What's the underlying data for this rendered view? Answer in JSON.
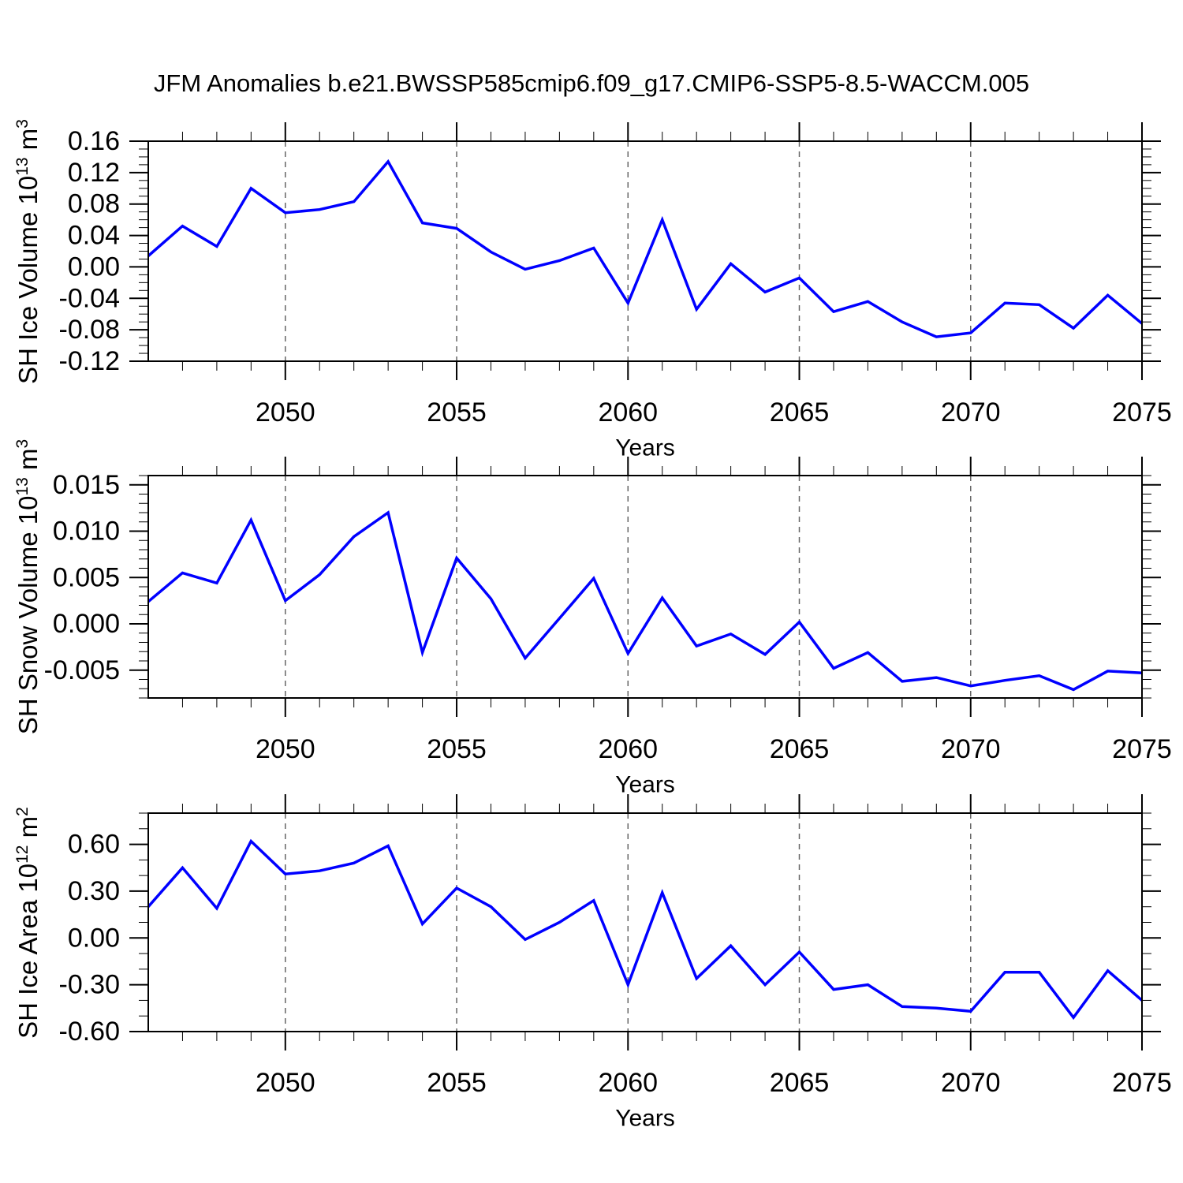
{
  "title": "JFM Anomalies b.e21.BWSSP585cmip6.f09_g17.CMIP6-SSP5-8.5-WACCM.005",
  "colors": {
    "line": "#0000ff",
    "frame": "#000000",
    "gridline": "#666666",
    "text": "#000000"
  },
  "x_axis": {
    "label": "Years",
    "xlim": [
      2046,
      2075
    ],
    "major_tick_start": 2050,
    "major_tick_step": 5,
    "minor_tick_step": 1,
    "gridline_years": [
      2050,
      2055,
      2060,
      2065,
      2070
    ],
    "tick_labels": [
      "2050",
      "2055",
      "2060",
      "2065",
      "2070",
      "2075"
    ]
  },
  "chart_data": [
    {
      "type": "line",
      "name": "sh-ice-volume",
      "ylabel_parts": {
        "pre": "SH Ice Volume 10",
        "sup1": "13",
        "mid": " m",
        "sup2": "3"
      },
      "ylim": [
        -0.12,
        0.16
      ],
      "ymajor_step": 0.04,
      "yminor_step": 0.01,
      "ydecimals": 2,
      "ytick_labels": [
        "0.16",
        "0.12",
        "0.08",
        "0.04",
        "0.00",
        "-0.04",
        "-0.08",
        "-0.12"
      ],
      "x_start": 2046,
      "values": [
        0.014,
        0.052,
        0.026,
        0.1,
        0.069,
        0.073,
        0.083,
        0.134,
        0.056,
        0.049,
        0.019,
        -0.003,
        0.008,
        0.024,
        -0.046,
        0.06,
        -0.054,
        0.004,
        -0.032,
        -0.014,
        -0.057,
        -0.044,
        -0.07,
        -0.089,
        -0.084,
        -0.046,
        -0.048,
        -0.078,
        -0.036,
        -0.072
      ]
    },
    {
      "type": "line",
      "name": "sh-snow-volume",
      "ylabel_parts": {
        "pre": "SH Snow Volume 10",
        "sup1": "13",
        "mid": " m",
        "sup2": "3"
      },
      "ylim": [
        -0.008,
        0.016
      ],
      "ymajor_step": 0.005,
      "yminor_step": 0.001,
      "ydecimals": 3,
      "ytick_labels": [
        "0.015",
        "0.010",
        "0.005",
        "0.000",
        "-0.005"
      ],
      "x_start": 2046,
      "values": [
        0.0024,
        0.0055,
        0.0044,
        0.0112,
        0.0025,
        0.0053,
        0.0094,
        0.012,
        -0.0031,
        0.0071,
        0.0027,
        -0.0037,
        0.0006,
        0.0049,
        -0.0032,
        0.0028,
        -0.0024,
        -0.0011,
        -0.0033,
        0.0002,
        -0.0048,
        -0.0031,
        -0.0062,
        -0.0058,
        -0.0067,
        -0.0061,
        -0.0056,
        -0.0071,
        -0.0051,
        -0.0053
      ]
    },
    {
      "type": "line",
      "name": "sh-ice-area",
      "ylabel_parts": {
        "pre": "SH Ice Area 10",
        "sup1": "12",
        "mid": " m",
        "sup2": "2"
      },
      "ylim": [
        -0.6,
        0.8
      ],
      "ymajor_step": 0.3,
      "yminor_step": 0.1,
      "ydecimals": 2,
      "ytick_labels": [
        "0.60",
        "0.30",
        "0.00",
        "-0.30",
        "-0.60"
      ],
      "x_start": 2046,
      "values": [
        0.2,
        0.45,
        0.19,
        0.62,
        0.41,
        0.43,
        0.48,
        0.59,
        0.09,
        0.32,
        0.2,
        -0.01,
        0.1,
        0.24,
        -0.3,
        0.29,
        -0.26,
        -0.05,
        -0.3,
        -0.09,
        -0.33,
        -0.3,
        -0.44,
        -0.45,
        -0.47,
        -0.22,
        -0.22,
        -0.51,
        -0.21,
        -0.4
      ]
    }
  ]
}
